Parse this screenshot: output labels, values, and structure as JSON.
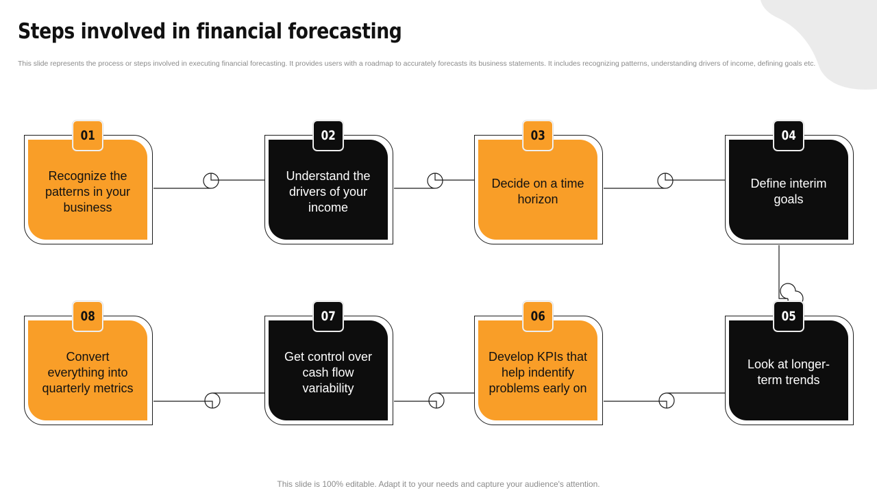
{
  "slide": {
    "title": "Steps involved in financial forecasting",
    "subtitle": "This slide represents the process or steps involved in executing financial forecasting. It provides users with a roadmap to accurately forecasts its business statements. It includes recognizing patterns, understanding drivers of income, defining goals etc.",
    "footer": "This slide is 100% editable. Adapt it to your needs and capture your audience's attention."
  },
  "steps": [
    {
      "number": "01",
      "text": "Recognize the patterns in your business",
      "style": "orange"
    },
    {
      "number": "02",
      "text": "Understand the drivers of your income",
      "style": "black"
    },
    {
      "number": "03",
      "text": "Decide on a time horizon",
      "style": "orange"
    },
    {
      "number": "04",
      "text": "Define interim goals",
      "style": "black"
    },
    {
      "number": "05",
      "text": "Look at longer-term trends",
      "style": "black"
    },
    {
      "number": "06",
      "text": "Develop KPIs that help indentify problems early on",
      "style": "orange"
    },
    {
      "number": "07",
      "text": "Get control over cash flow variability",
      "style": "black"
    },
    {
      "number": "08",
      "text": "Convert everything into quarterly metrics",
      "style": "orange"
    }
  ],
  "colors": {
    "accent": "#F99E28",
    "dark": "#0d0d0d",
    "background_blob": "#ebebeb"
  }
}
